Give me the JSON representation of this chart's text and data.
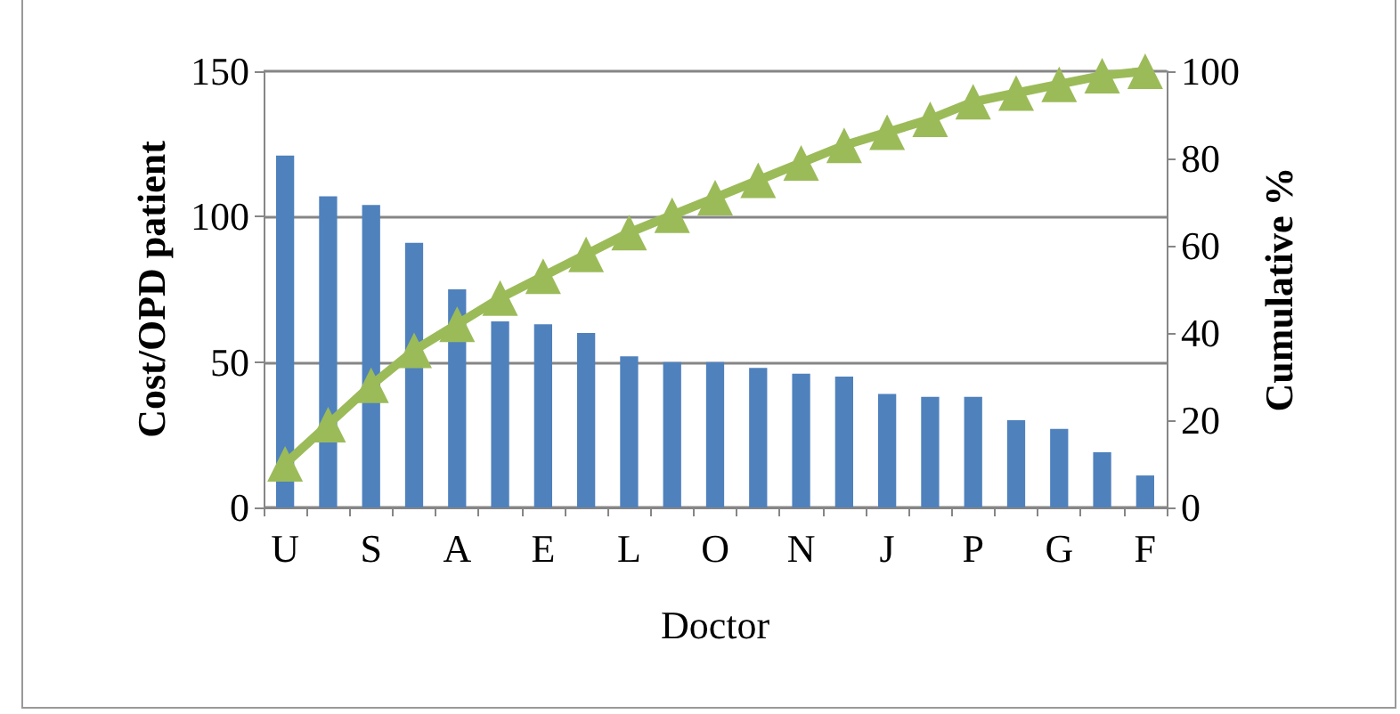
{
  "chart_data": {
    "type": "bar",
    "xlabel": "Doctor",
    "ylabel": "Cost/OPD patient",
    "y2label": "Cumulative %",
    "categories": [
      "U",
      null,
      "S",
      null,
      "A",
      null,
      "E",
      null,
      "L",
      null,
      "O",
      null,
      "N",
      null,
      "J",
      null,
      "P",
      null,
      "G",
      null,
      "F"
    ],
    "series": [
      {
        "color": "#4f81bd",
        "values": [
          121,
          107,
          104,
          91,
          75,
          64,
          63,
          60,
          52,
          50,
          50,
          48,
          46,
          45,
          39,
          38,
          38,
          30,
          27,
          19,
          11
        ]
      },
      {
        "type": "line",
        "axis": "y2",
        "color": "#9bbb59",
        "values": [
          10,
          19,
          28,
          36,
          42,
          48,
          53,
          58,
          63,
          67,
          71,
          75,
          79,
          83,
          86,
          89,
          93,
          95,
          97,
          99,
          100
        ]
      }
    ],
    "ylim": [
      0,
      150
    ],
    "yticks": [
      0,
      50,
      100,
      150
    ],
    "y2lim": [
      0,
      100
    ],
    "y2ticks": [
      0,
      20,
      40,
      60,
      80,
      100
    ],
    "grid": "y",
    "marker": "triangle",
    "line_style": "solid"
  }
}
